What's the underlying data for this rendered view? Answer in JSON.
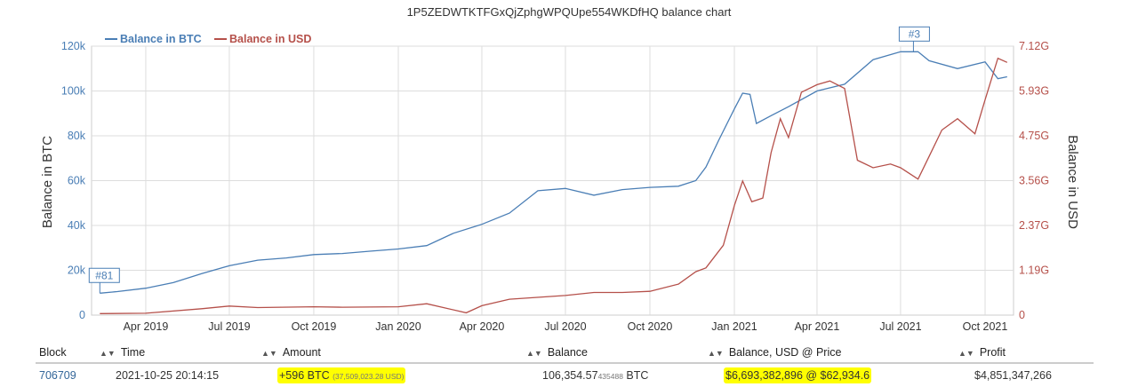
{
  "chart_data": {
    "type": "line",
    "title": "1P5ZEDWTKTFGxQjZphgWPQUpe554WKDfHQ balance chart",
    "ylabel_left": "Balance in BTC",
    "ylabel_right": "Balance in USD",
    "x_tick_labels": [
      "Apr 2019",
      "Jul 2019",
      "Oct 2019",
      "Jan 2020",
      "Apr 2020",
      "Jul 2020",
      "Oct 2020",
      "Jan 2021",
      "Apr 2021",
      "Jul 2021",
      "Oct 2021"
    ],
    "y_left_ticks": [
      "0",
      "20k",
      "40k",
      "60k",
      "80k",
      "100k",
      "120k"
    ],
    "y_left_values": [
      0,
      20000,
      40000,
      60000,
      80000,
      100000,
      120000
    ],
    "y_right_ticks": [
      "0",
      "1.19G",
      "2.37G",
      "3.56G",
      "4.75G",
      "5.93G",
      "7.12G"
    ],
    "y_right_values": [
      0,
      1.19,
      2.37,
      3.56,
      4.75,
      5.93,
      7.12
    ],
    "ylim_left": [
      0,
      120000
    ],
    "ylim_right": [
      0,
      7.12
    ],
    "legend_position": "top-left",
    "series": [
      {
        "name": "Balance in BTC",
        "color": "#4a7eb5",
        "axis": "left",
        "points": [
          [
            "2019-02-10",
            9800
          ],
          [
            "2019-03-01",
            10500
          ],
          [
            "2019-04-01",
            12000
          ],
          [
            "2019-05-01",
            14500
          ],
          [
            "2019-06-01",
            18500
          ],
          [
            "2019-07-01",
            22000
          ],
          [
            "2019-08-01",
            24500
          ],
          [
            "2019-09-01",
            25500
          ],
          [
            "2019-10-01",
            27000
          ],
          [
            "2019-11-01",
            27500
          ],
          [
            "2019-12-01",
            28500
          ],
          [
            "2020-01-01",
            29500
          ],
          [
            "2020-02-01",
            31000
          ],
          [
            "2020-03-01",
            36500
          ],
          [
            "2020-04-01",
            40500
          ],
          [
            "2020-05-01",
            45500
          ],
          [
            "2020-06-01",
            55500
          ],
          [
            "2020-07-01",
            56500
          ],
          [
            "2020-08-01",
            53500
          ],
          [
            "2020-09-01",
            56000
          ],
          [
            "2020-10-01",
            57000
          ],
          [
            "2020-11-01",
            57500
          ],
          [
            "2020-11-20",
            60000
          ],
          [
            "2020-12-01",
            66000
          ],
          [
            "2020-12-15",
            78000
          ],
          [
            "2021-01-01",
            92000
          ],
          [
            "2021-01-10",
            99000
          ],
          [
            "2021-01-18",
            98500
          ],
          [
            "2021-01-25",
            85500
          ],
          [
            "2021-02-10",
            89000
          ],
          [
            "2021-03-01",
            93000
          ],
          [
            "2021-04-01",
            100000
          ],
          [
            "2021-05-01",
            103000
          ],
          [
            "2021-06-01",
            114000
          ],
          [
            "2021-07-01",
            117500
          ],
          [
            "2021-07-20",
            117500
          ],
          [
            "2021-08-01",
            113500
          ],
          [
            "2021-09-01",
            110000
          ],
          [
            "2021-10-01",
            113000
          ],
          [
            "2021-10-15",
            105500
          ],
          [
            "2021-10-25",
            106354.57
          ]
        ]
      },
      {
        "name": "Balance in USD",
        "color": "#b5504a",
        "axis": "right",
        "points": [
          [
            "2019-02-10",
            0.04
          ],
          [
            "2019-04-01",
            0.05
          ],
          [
            "2019-06-01",
            0.17
          ],
          [
            "2019-07-01",
            0.24
          ],
          [
            "2019-08-01",
            0.2
          ],
          [
            "2019-10-01",
            0.22
          ],
          [
            "2019-11-01",
            0.21
          ],
          [
            "2020-01-01",
            0.22
          ],
          [
            "2020-02-01",
            0.3
          ],
          [
            "2020-03-15",
            0.06
          ],
          [
            "2020-04-01",
            0.25
          ],
          [
            "2020-05-01",
            0.42
          ],
          [
            "2020-07-01",
            0.52
          ],
          [
            "2020-08-01",
            0.6
          ],
          [
            "2020-09-01",
            0.6
          ],
          [
            "2020-10-01",
            0.63
          ],
          [
            "2020-11-01",
            0.82
          ],
          [
            "2020-11-20",
            1.15
          ],
          [
            "2020-12-01",
            1.25
          ],
          [
            "2020-12-20",
            1.85
          ],
          [
            "2021-01-01",
            2.9
          ],
          [
            "2021-01-10",
            3.55
          ],
          [
            "2021-01-20",
            3.0
          ],
          [
            "2021-02-01",
            3.1
          ],
          [
            "2021-02-10",
            4.3
          ],
          [
            "2021-02-20",
            5.2
          ],
          [
            "2021-03-01",
            4.7
          ],
          [
            "2021-03-15",
            5.9
          ],
          [
            "2021-04-01",
            6.1
          ],
          [
            "2021-04-15",
            6.2
          ],
          [
            "2021-05-01",
            6.0
          ],
          [
            "2021-05-15",
            4.1
          ],
          [
            "2021-06-01",
            3.9
          ],
          [
            "2021-06-20",
            4.0
          ],
          [
            "2021-07-01",
            3.9
          ],
          [
            "2021-07-20",
            3.6
          ],
          [
            "2021-08-01",
            4.2
          ],
          [
            "2021-08-15",
            4.9
          ],
          [
            "2021-09-01",
            5.2
          ],
          [
            "2021-09-20",
            4.8
          ],
          [
            "2021-10-01",
            5.7
          ],
          [
            "2021-10-15",
            6.8
          ],
          [
            "2021-10-25",
            6.69
          ]
        ]
      }
    ],
    "annotations": [
      {
        "label": "#81",
        "date": "2019-02-10",
        "value": 9800
      },
      {
        "label": "#3",
        "date": "2021-07-15",
        "value": 117500
      }
    ]
  },
  "legend": {
    "btc": "Balance in BTC",
    "usd": "Balance in USD"
  },
  "table": {
    "headers": [
      "Block",
      "Time",
      "Amount",
      "Balance",
      "Balance, USD @ Price",
      "Profit"
    ],
    "row": {
      "block": "706709",
      "time": "2021-10-25 20:14:15",
      "amount": "+596 BTC",
      "amount_usd": "(37,509,023.28 USD)",
      "balance_main": "106,354.57",
      "balance_frac": "435488",
      "balance_unit": "BTC",
      "balance_usd": "$6,693,382,896 @ $62,934.6",
      "profit": "$4,851,347,266"
    }
  },
  "colors": {
    "btc": "#4a7eb5",
    "usd": "#b5504a",
    "grid": "#dddddd",
    "highlight": "#ffff00",
    "link": "#336699"
  },
  "icons": {
    "sort": "sort-arrows-icon"
  }
}
